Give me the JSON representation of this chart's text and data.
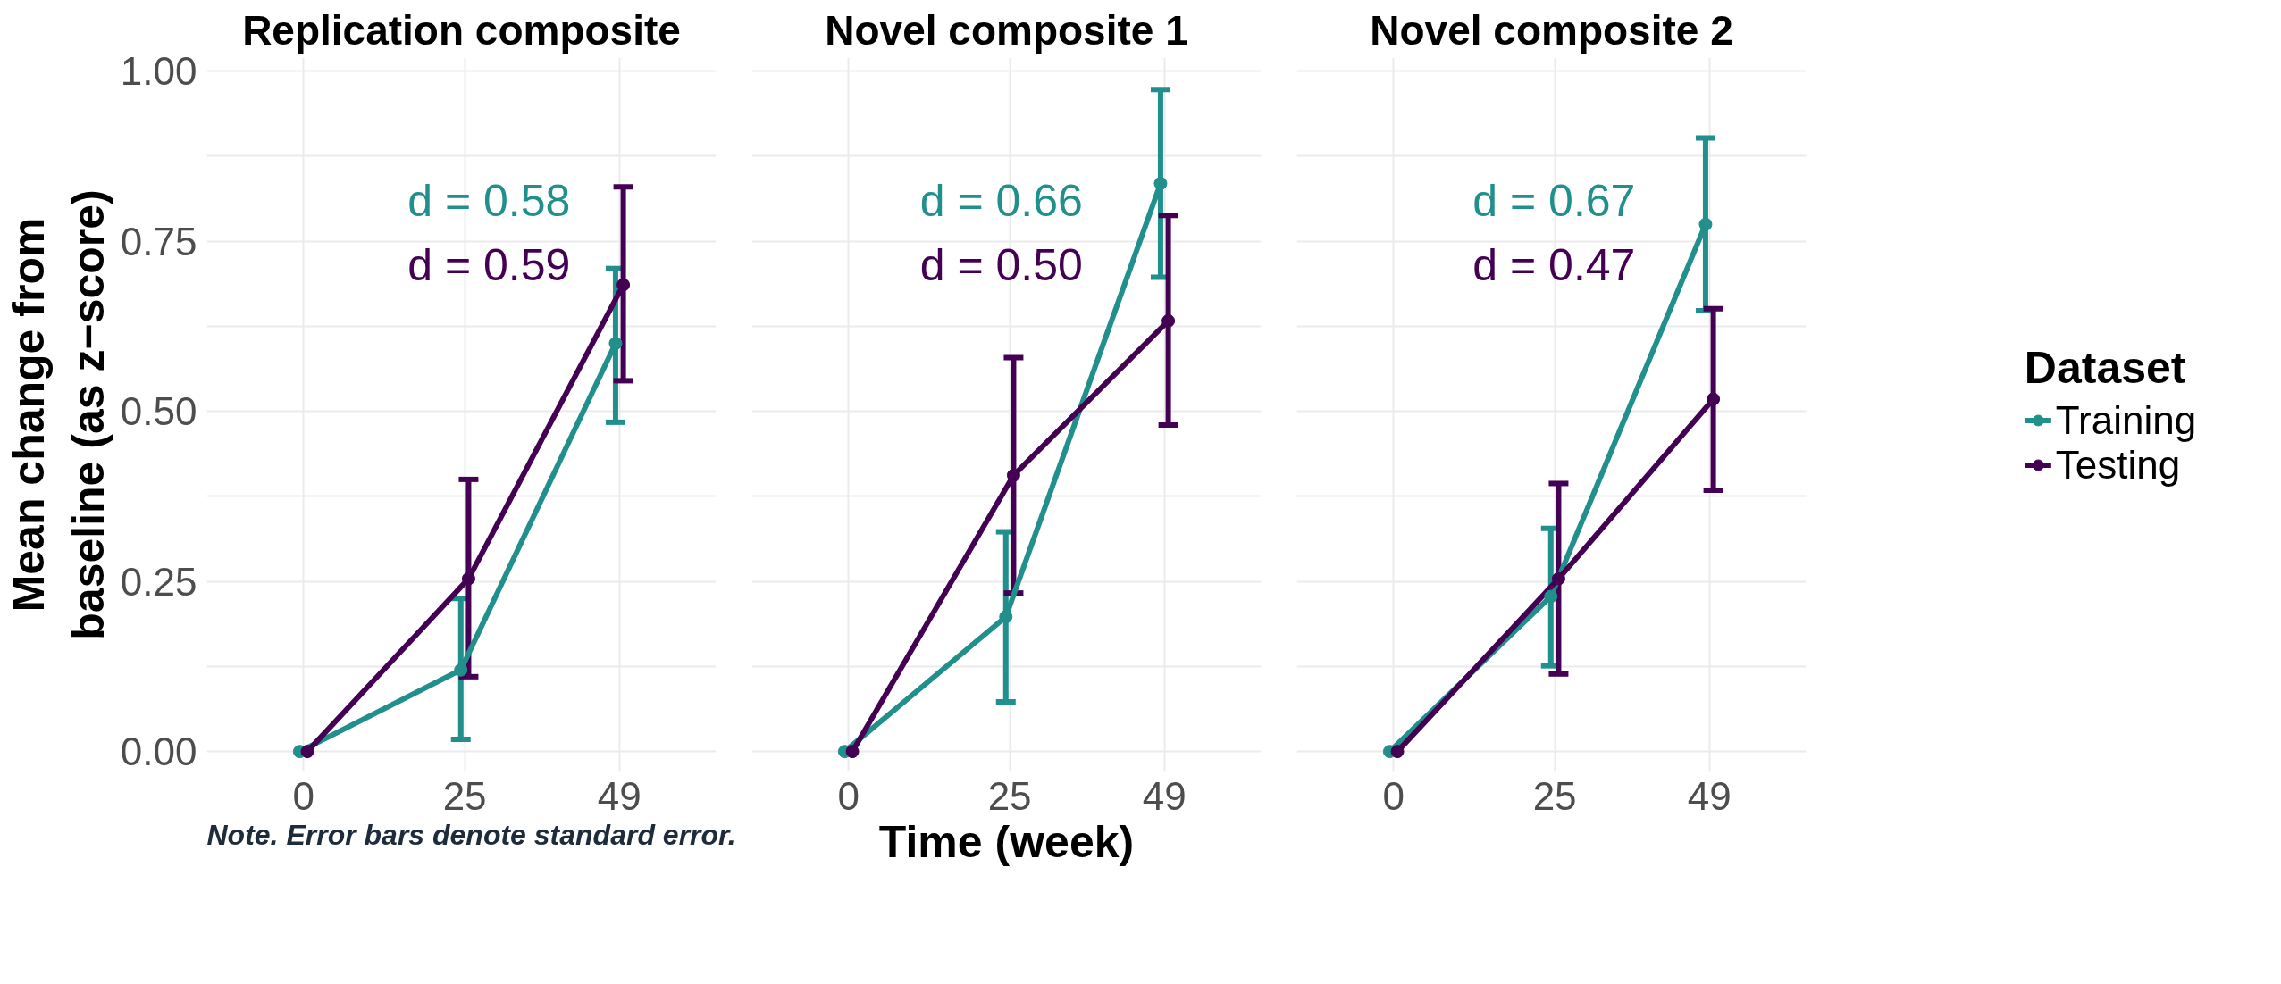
{
  "chart_data": [
    {
      "type": "line",
      "title": "Replication composite",
      "ylabel": "Mean change from\nbaseline (as z−score)",
      "xlim": [
        -15,
        64
      ],
      "xticks": [
        0,
        25,
        49
      ],
      "ylim": [
        -0.03,
        1.02
      ],
      "yticks": [
        {
          "value": 0,
          "label": "0.00"
        },
        {
          "value": 0.25,
          "label": "0.25"
        },
        {
          "value": 0.5,
          "label": "0.50"
        },
        {
          "value": 0.75,
          "label": "0.75"
        },
        {
          "value": 1,
          "label": "1.00"
        }
      ],
      "grid": true,
      "marker": "circle",
      "line_style": "solid",
      "series": [
        {
          "color": "#21908c",
          "x": [
            -0.6,
            24.4,
            48.4
          ],
          "values": [
            0,
            0.12,
            0.6
          ],
          "errors": [
            null,
            [
              0.018,
              0.225
            ],
            [
              0.484,
              0.71
            ]
          ]
        },
        {
          "color": "#440154",
          "x": [
            0.6,
            25.6,
            49.6
          ],
          "values": [
            0,
            0.254,
            0.686
          ],
          "errors": [
            null,
            [
              0.11,
              0.4
            ],
            [
              0.545,
              0.83
            ]
          ]
        }
      ],
      "annotations": [
        "d = 0.58",
        "d = 0.59",
        "Note. Error bars denote standard error."
      ]
    },
    {
      "type": "line",
      "title": "Novel composite 1",
      "xlabel": "Time (week)",
      "xlim": [
        -15,
        64
      ],
      "xticks": [
        0,
        25,
        49
      ],
      "ylim": [
        -0.03,
        1.02
      ],
      "grid": true,
      "marker": "circle",
      "line_style": "solid",
      "tick_labels": "x",
      "series": [
        {
          "color": "#21908c",
          "x": [
            -0.6,
            24.4,
            48.4
          ],
          "values": [
            0,
            0.198,
            0.835
          ],
          "errors": [
            null,
            [
              0.073,
              0.323
            ],
            [
              0.697,
              0.973
            ]
          ]
        },
        {
          "color": "#440154",
          "x": [
            0.6,
            25.6,
            49.6
          ],
          "values": [
            0,
            0.406,
            0.633
          ],
          "errors": [
            null,
            [
              0.233,
              0.579
            ],
            [
              0.48,
              0.788
            ]
          ]
        }
      ],
      "annotations": [
        "d = 0.66",
        "d = 0.50"
      ]
    },
    {
      "type": "line",
      "title": "Novel composite 2",
      "xlim": [
        -15,
        64
      ],
      "xticks": [
        0,
        25,
        49
      ],
      "ylim": [
        -0.03,
        1.02
      ],
      "grid": true,
      "marker": "circle",
      "line_style": "solid",
      "tick_labels": "x",
      "legend": "right",
      "legend_title": "Dataset",
      "series": [
        {
          "name": "Training",
          "color": "#21908c",
          "x": [
            -0.6,
            24.4,
            48.4
          ],
          "values": [
            0,
            0.228,
            0.775
          ],
          "errors": [
            null,
            [
              0.126,
              0.328
            ],
            [
              0.648,
              0.902
            ]
          ]
        },
        {
          "name": "Testing",
          "color": "#440154",
          "x": [
            0.6,
            25.6,
            49.6
          ],
          "values": [
            0,
            0.254,
            0.518
          ],
          "errors": [
            null,
            [
              0.114,
              0.394
            ],
            [
              0.384,
              0.651
            ]
          ]
        }
      ],
      "annotations": [
        "d = 0.67",
        "d = 0.47"
      ]
    }
  ]
}
